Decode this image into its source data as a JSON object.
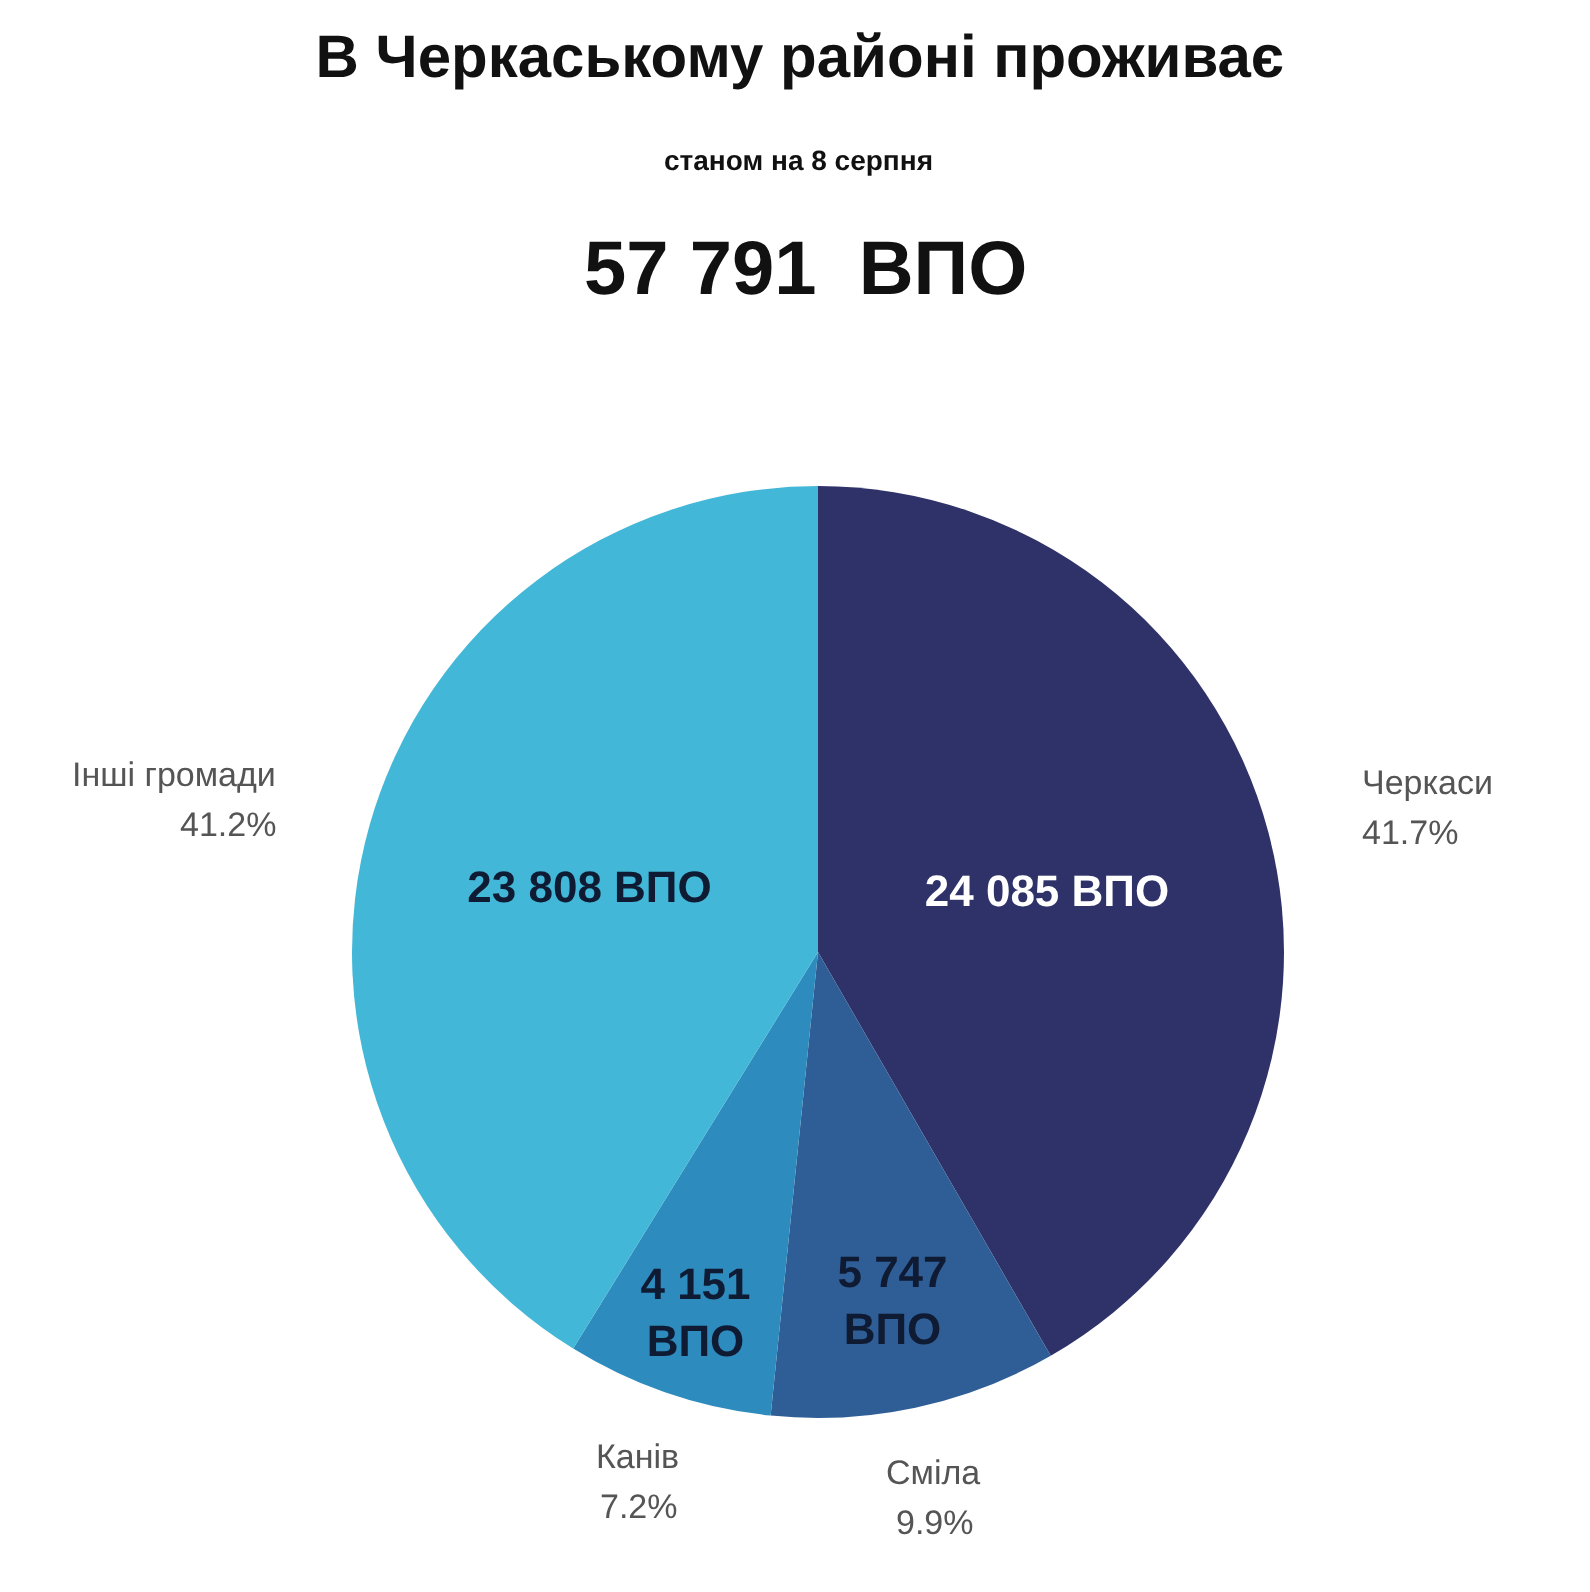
{
  "chart_data": {
    "type": "pie",
    "title": "В Черкаському районі проживає",
    "subtitle": "станом на 8 серпня",
    "annotations": [
      "57 791  ВПО",
      {
        "text": "41.7%",
        "x": "Черкаси"
      },
      {
        "text": "9.9%",
        "x": "Сміла"
      },
      {
        "text": "7.2%",
        "x": "Канів"
      },
      {
        "text": "41.2%",
        "x": "Інші громади"
      }
    ],
    "categories": [
      "Черкаси",
      "Сміла",
      "Канів",
      "Інші громади"
    ],
    "values": [
      24085,
      5747,
      4151,
      23808
    ],
    "colors": [
      "#2e3268",
      "#2f5e96",
      "#2d8bbd",
      "#42b7d7"
    ],
    "value_labels": [
      "24 085 ВПО",
      "5 747\nВПО",
      "4 151\nВПО",
      "23 808 ВПО"
    ],
    "legend": false
  }
}
